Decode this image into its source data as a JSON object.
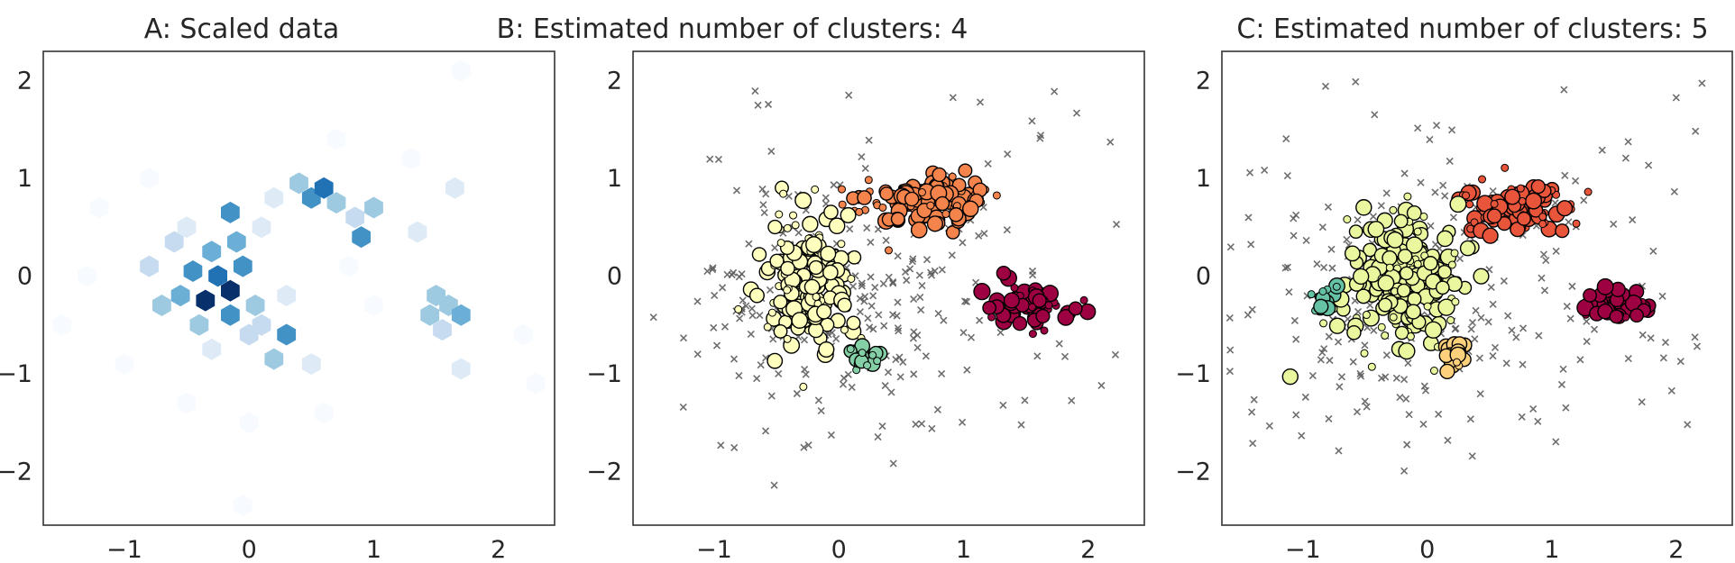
{
  "chart_data": [
    {
      "type": "hexbin",
      "title": "A: Scaled data",
      "xlim": [
        -1.65,
        2.45
      ],
      "ylim": [
        -2.55,
        2.3
      ],
      "xticks": [
        -1,
        0,
        1,
        2
      ],
      "yticks": [
        -2,
        -1,
        0,
        1,
        2
      ],
      "tick_labels_x": [
        "−1",
        "0",
        "1",
        "2"
      ],
      "tick_labels_y": [
        "−2",
        "−1",
        "0",
        "1",
        "2"
      ],
      "grid": false,
      "colormap": [
        "#f7fbff",
        "#deebf7",
        "#c6dbef",
        "#9ecae1",
        "#6baed6",
        "#4292c6",
        "#2171b5",
        "#08519c",
        "#08306b"
      ],
      "cells": [
        {
          "x": -0.35,
          "y": -0.25,
          "count": 9
        },
        {
          "x": -0.15,
          "y": -0.15,
          "count": 9
        },
        {
          "x": -0.25,
          "y": 0.0,
          "count": 7
        },
        {
          "x": -0.05,
          "y": 0.1,
          "count": 6
        },
        {
          "x": -0.45,
          "y": 0.05,
          "count": 6
        },
        {
          "x": -0.15,
          "y": -0.4,
          "count": 6
        },
        {
          "x": -0.55,
          "y": -0.2,
          "count": 5
        },
        {
          "x": -0.3,
          "y": 0.25,
          "count": 5
        },
        {
          "x": -0.1,
          "y": 0.35,
          "count": 5
        },
        {
          "x": -0.15,
          "y": 0.65,
          "count": 6
        },
        {
          "x": 0.3,
          "y": -0.6,
          "count": 6
        },
        {
          "x": 0.2,
          "y": -0.85,
          "count": 4
        },
        {
          "x": 0.05,
          "y": -0.3,
          "count": 4
        },
        {
          "x": -0.4,
          "y": -0.5,
          "count": 4
        },
        {
          "x": -0.7,
          "y": -0.3,
          "count": 4
        },
        {
          "x": 0.5,
          "y": 0.8,
          "count": 6
        },
        {
          "x": 0.6,
          "y": 0.9,
          "count": 7
        },
        {
          "x": 0.4,
          "y": 0.95,
          "count": 4
        },
        {
          "x": 0.7,
          "y": 0.75,
          "count": 4
        },
        {
          "x": 0.9,
          "y": 0.4,
          "count": 6
        },
        {
          "x": 1.0,
          "y": 0.7,
          "count": 4
        },
        {
          "x": 0.85,
          "y": 0.6,
          "count": 3
        },
        {
          "x": 1.5,
          "y": -0.2,
          "count": 4
        },
        {
          "x": 1.6,
          "y": -0.3,
          "count": 4
        },
        {
          "x": 1.45,
          "y": -0.4,
          "count": 4
        },
        {
          "x": 1.7,
          "y": -0.4,
          "count": 5
        },
        {
          "x": 1.55,
          "y": -0.55,
          "count": 3
        },
        {
          "x": -0.6,
          "y": 0.35,
          "count": 3
        },
        {
          "x": -0.8,
          "y": 0.1,
          "count": 3
        },
        {
          "x": 0.0,
          "y": -0.6,
          "count": 3
        },
        {
          "x": 0.1,
          "y": -0.5,
          "count": 3
        },
        {
          "x": -0.5,
          "y": 0.5,
          "count": 2
        },
        {
          "x": 0.1,
          "y": 0.5,
          "count": 2
        },
        {
          "x": 0.2,
          "y": 0.8,
          "count": 2
        },
        {
          "x": 0.3,
          "y": -0.2,
          "count": 2
        },
        {
          "x": -0.3,
          "y": -0.75,
          "count": 2
        },
        {
          "x": 0.5,
          "y": -0.9,
          "count": 2
        },
        {
          "x": 1.35,
          "y": 0.45,
          "count": 2
        },
        {
          "x": 1.65,
          "y": 0.9,
          "count": 2
        },
        {
          "x": 1.7,
          "y": -0.95,
          "count": 2
        },
        {
          "x": -1.2,
          "y": 0.7,
          "count": 1
        },
        {
          "x": -1.3,
          "y": 0.0,
          "count": 1
        },
        {
          "x": -1.0,
          "y": -0.9,
          "count": 1
        },
        {
          "x": -0.5,
          "y": -1.3,
          "count": 1
        },
        {
          "x": 0.0,
          "y": -1.5,
          "count": 1
        },
        {
          "x": 0.6,
          "y": -1.4,
          "count": 1
        },
        {
          "x": 2.2,
          "y": -0.6,
          "count": 1
        },
        {
          "x": 2.3,
          "y": -1.1,
          "count": 1
        },
        {
          "x": 1.7,
          "y": 2.1,
          "count": 1
        },
        {
          "x": -0.05,
          "y": -2.35,
          "count": 1
        },
        {
          "x": 1.3,
          "y": 1.2,
          "count": 1
        },
        {
          "x": 0.7,
          "y": 1.4,
          "count": 1
        },
        {
          "x": -0.8,
          "y": 1.0,
          "count": 1
        },
        {
          "x": -1.5,
          "y": -0.5,
          "count": 1
        },
        {
          "x": 1.0,
          "y": -0.3,
          "count": 1
        },
        {
          "x": 0.8,
          "y": 0.1,
          "count": 1
        }
      ]
    },
    {
      "type": "scatter",
      "title": "B: Estimated number of clusters: 4",
      "xlim": [
        -1.65,
        2.45
      ],
      "ylim": [
        -2.55,
        2.3
      ],
      "xticks": [
        -1,
        0,
        1,
        2
      ],
      "yticks": [
        -2,
        -1,
        0,
        1,
        2
      ],
      "tick_labels_x": [
        "−1",
        "0",
        "1",
        "2"
      ],
      "tick_labels_y": [
        "−2",
        "−1",
        "0",
        "1",
        "2"
      ],
      "grid": false,
      "clusters": [
        {
          "color": "#9e0142",
          "cx": 1.55,
          "cy": -0.3,
          "sx": 0.17,
          "sy": 0.12,
          "n": 60
        },
        {
          "color": "#f4844c",
          "cx": 0.7,
          "cy": 0.75,
          "sx": 0.25,
          "sy": 0.13,
          "n": 130
        },
        {
          "color": "#ffffbe",
          "cx": -0.25,
          "cy": -0.05,
          "sx": 0.17,
          "sy": 0.33,
          "n": 170
        },
        {
          "color": "#84cfa5",
          "cx": 0.2,
          "cy": -0.8,
          "sx": 0.07,
          "sy": 0.07,
          "n": 22
        }
      ],
      "noise": "gray x markers"
    },
    {
      "type": "scatter",
      "title": "C: Estimated number of clusters: 5",
      "xlim": [
        -1.65,
        2.45
      ],
      "ylim": [
        -2.55,
        2.3
      ],
      "xticks": [
        -1,
        0,
        1,
        2
      ],
      "yticks": [
        -2,
        -1,
        0,
        1,
        2
      ],
      "tick_labels_x": [
        "−1",
        "0",
        "1",
        "2"
      ],
      "tick_labels_y": [
        "−2",
        "−1",
        "0",
        "1",
        "2"
      ],
      "grid": false,
      "clusters": [
        {
          "color": "#9e0142",
          "cx": 1.5,
          "cy": -0.3,
          "sx": 0.15,
          "sy": 0.1,
          "n": 55
        },
        {
          "color": "#e8553a",
          "cx": 0.7,
          "cy": 0.7,
          "sx": 0.23,
          "sy": 0.13,
          "n": 110
        },
        {
          "color": "#eaf79e",
          "cx": -0.2,
          "cy": -0.05,
          "sx": 0.23,
          "sy": 0.35,
          "n": 200
        },
        {
          "color": "#fdd07b",
          "cx": 0.2,
          "cy": -0.8,
          "sx": 0.08,
          "sy": 0.08,
          "n": 24
        },
        {
          "color": "#66c2a5",
          "cx": -0.82,
          "cy": -0.25,
          "sx": 0.05,
          "sy": 0.06,
          "n": 14
        }
      ],
      "noise": "gray x markers"
    }
  ]
}
